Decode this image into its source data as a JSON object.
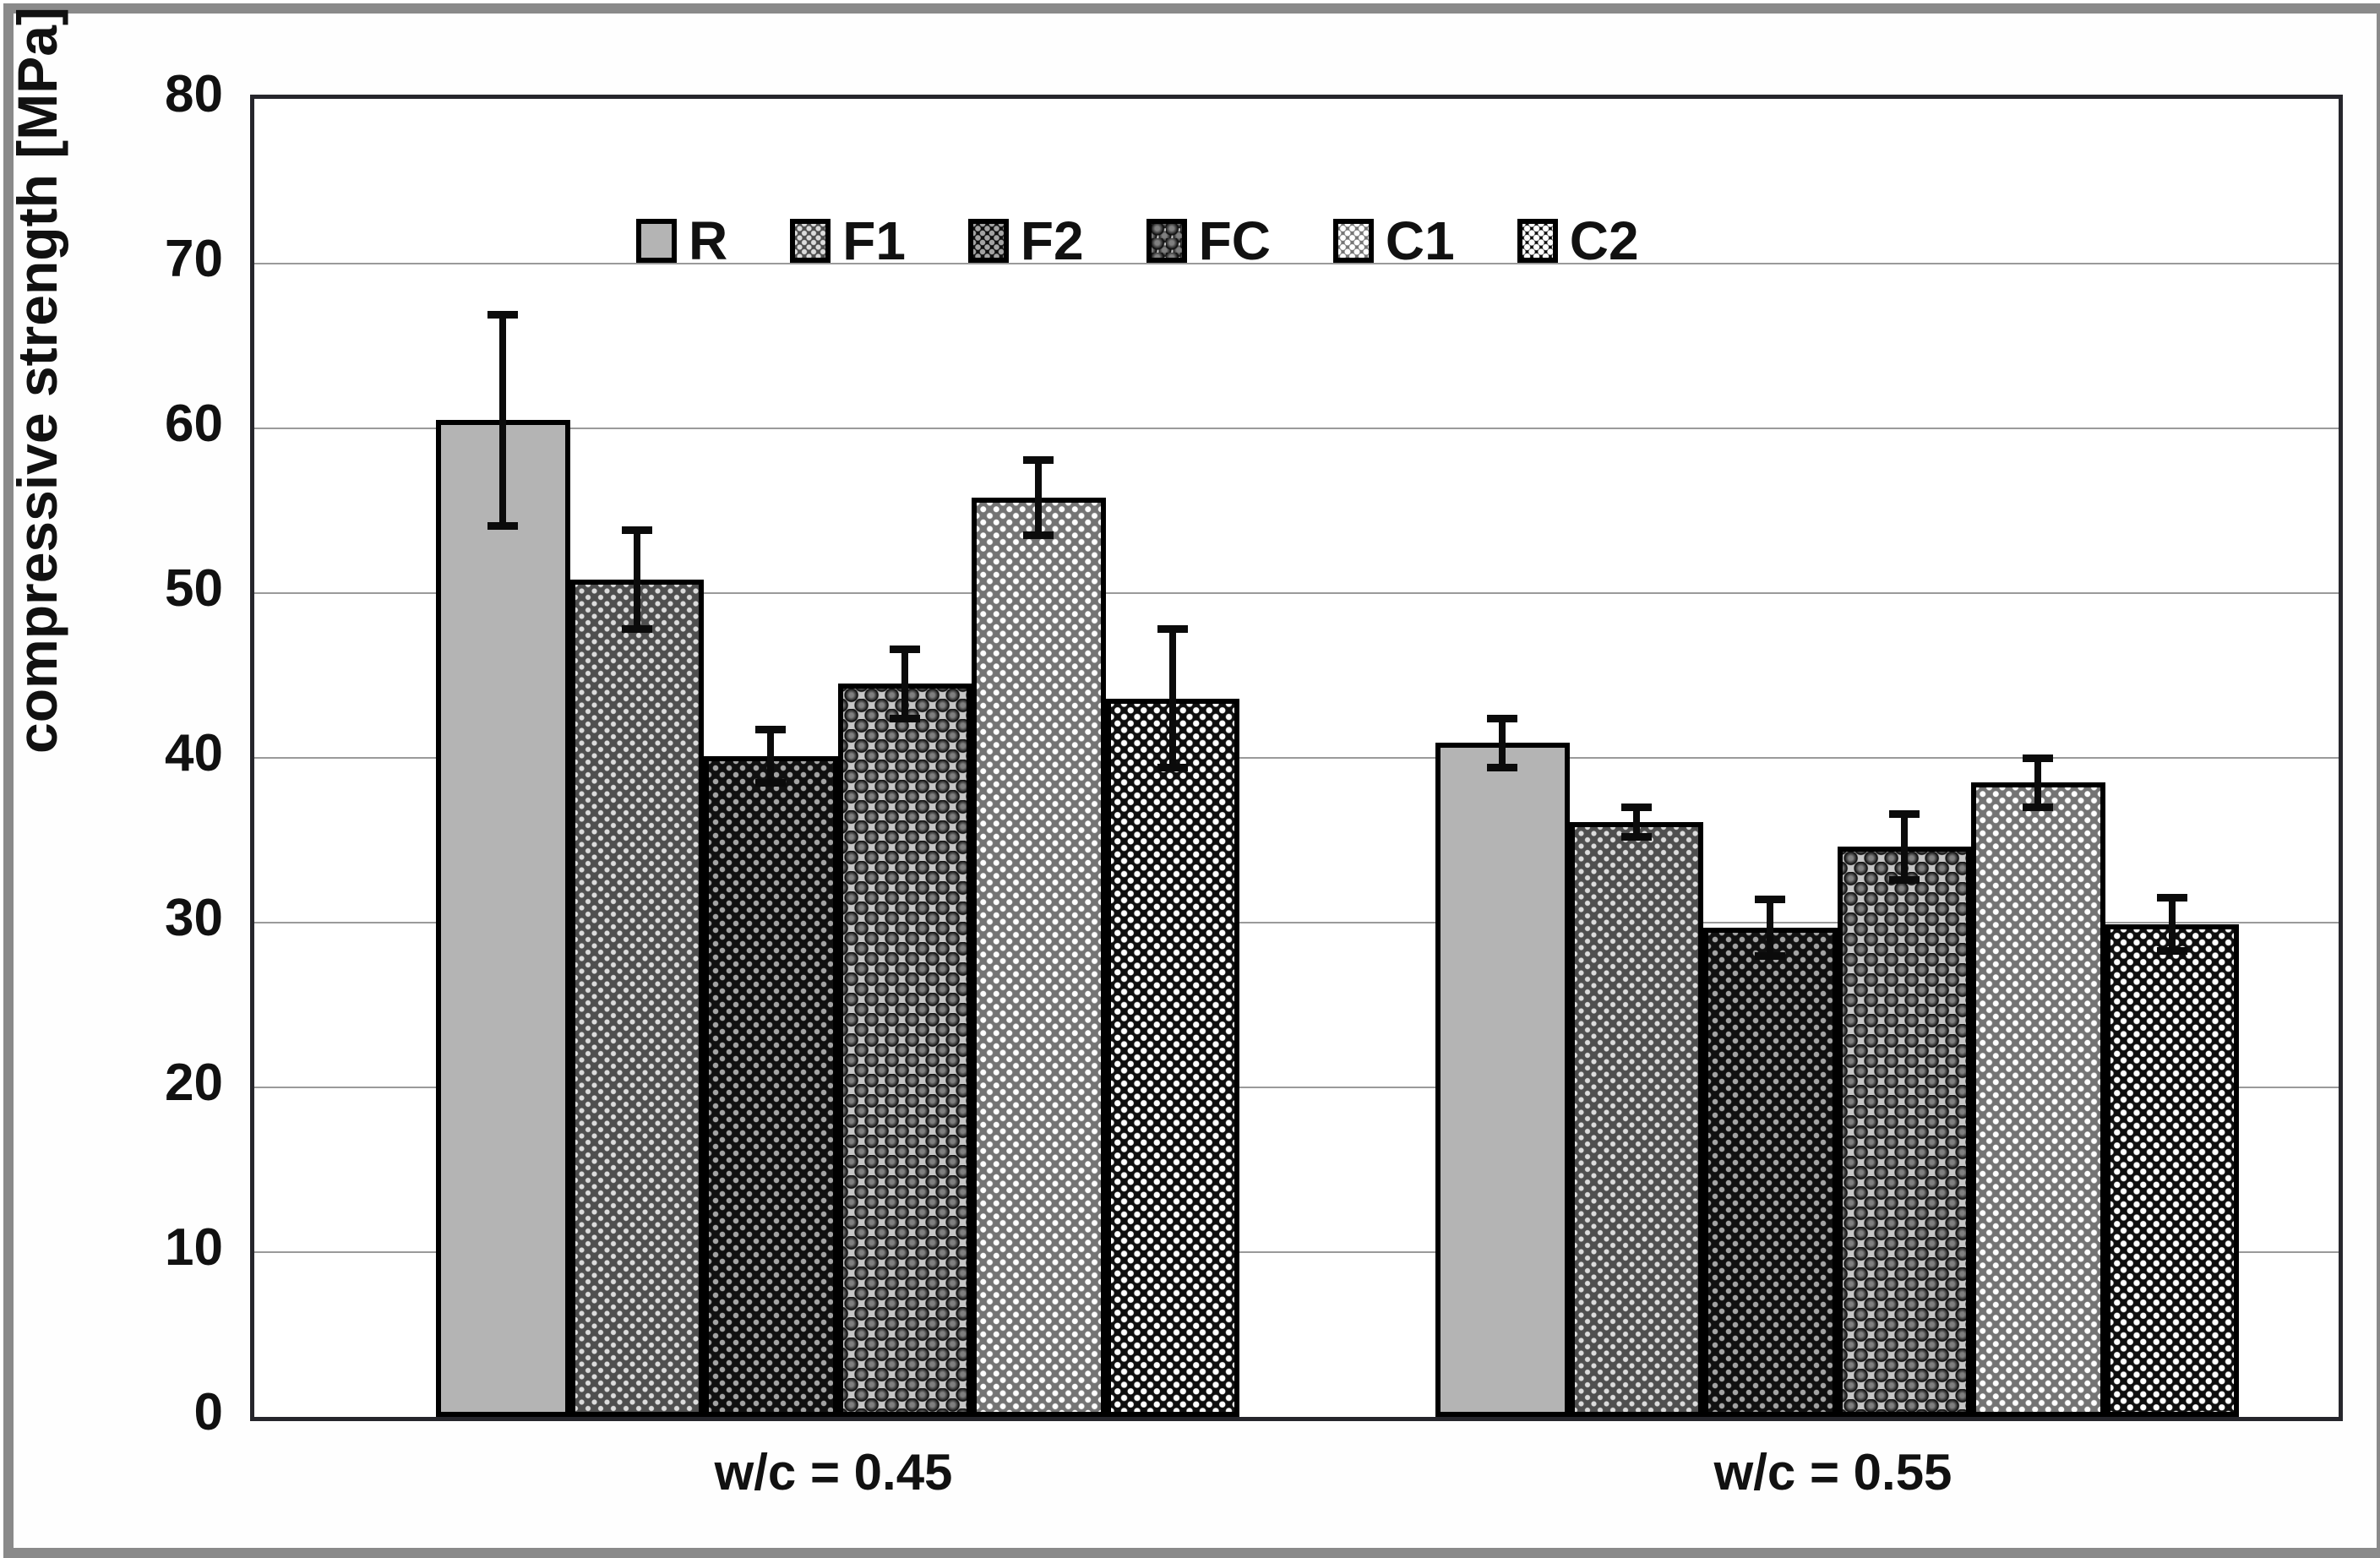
{
  "chart_data": {
    "type": "bar",
    "title": "",
    "xlabel": "",
    "ylabel": "compressive strength [MPa]",
    "ylim": [
      0,
      80
    ],
    "ytick_step": 10,
    "yticks": [
      0,
      10,
      20,
      30,
      40,
      50,
      60,
      70,
      80
    ],
    "grid": "horizontal",
    "legend_position": "top-inside",
    "error_bars": true,
    "categories": [
      "w/c = 0.45",
      "w/c = 0.55"
    ],
    "series": [
      {
        "name": "R",
        "fill": "#b4b4b4",
        "pattern": "solid-light-gray",
        "values": [
          60.5,
          40.9
        ],
        "errors": [
          6.4,
          1.5
        ]
      },
      {
        "name": "F1",
        "fill": "#4f4f4f",
        "pattern": "dark-gray-fine-dots",
        "values": [
          50.8,
          36.1
        ],
        "errors": [
          3.0,
          0.9
        ]
      },
      {
        "name": "F2",
        "fill": "#101010",
        "pattern": "black-gray-dots",
        "values": [
          40.1,
          29.7
        ],
        "errors": [
          1.6,
          1.7
        ]
      },
      {
        "name": "FC",
        "fill": "#c6c6c6",
        "pattern": "gray-black-spheres",
        "values": [
          44.5,
          34.6
        ],
        "errors": [
          2.1,
          2.0
        ]
      },
      {
        "name": "C1",
        "fill": "#747474",
        "pattern": "gray-white-dots",
        "values": [
          55.8,
          38.5
        ],
        "errors": [
          2.3,
          1.5
        ]
      },
      {
        "name": "C2",
        "fill": "#0e0e0e",
        "pattern": "black-white-dots",
        "values": [
          43.6,
          29.9
        ],
        "errors": [
          4.2,
          1.6
        ]
      }
    ],
    "colors": {
      "text": "#111111",
      "plot_border": "#26262c",
      "gridline": "#9a9a9a",
      "outer_frame": "#8a8a8a",
      "error_bar": "#0b0b0b"
    }
  }
}
